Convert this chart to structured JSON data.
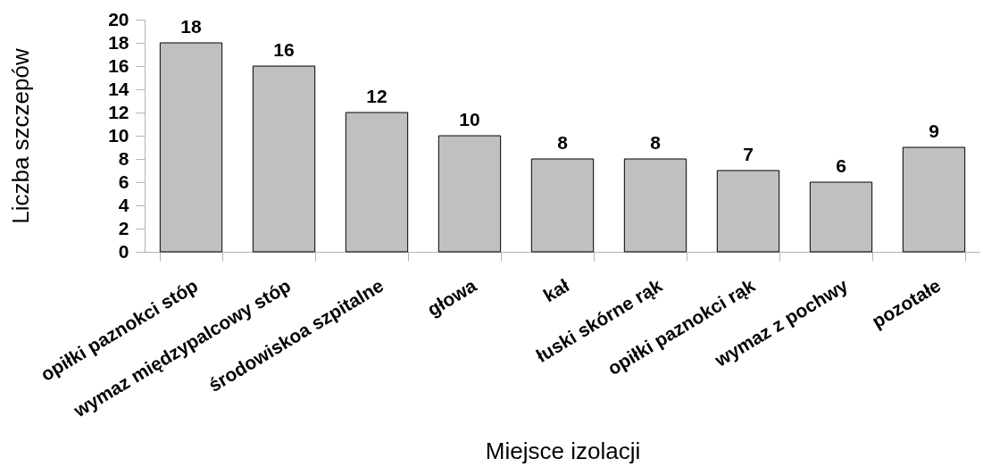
{
  "chart_data": {
    "type": "bar",
    "categories": [
      "opiłki paznokci stóp",
      "wymaz międzypalcowy stóp",
      "środowiskoa szpitalne",
      "głowa",
      "kał",
      "łuski skórne rąk",
      "opiłki paznokci rąk",
      "wymaz z pochwy",
      "pozotałe"
    ],
    "values": [
      18,
      16,
      12,
      10,
      8,
      8,
      7,
      6,
      9
    ],
    "color": "#c0c0c0",
    "xlabel": "Miejsce izolacji",
    "ylabel": "Liczba szczepów",
    "ylim": [
      0,
      20
    ],
    "yticks": [
      0,
      2,
      4,
      6,
      8,
      10,
      12,
      14,
      16,
      18,
      20
    ],
    "data_labels": true,
    "grid": false
  }
}
